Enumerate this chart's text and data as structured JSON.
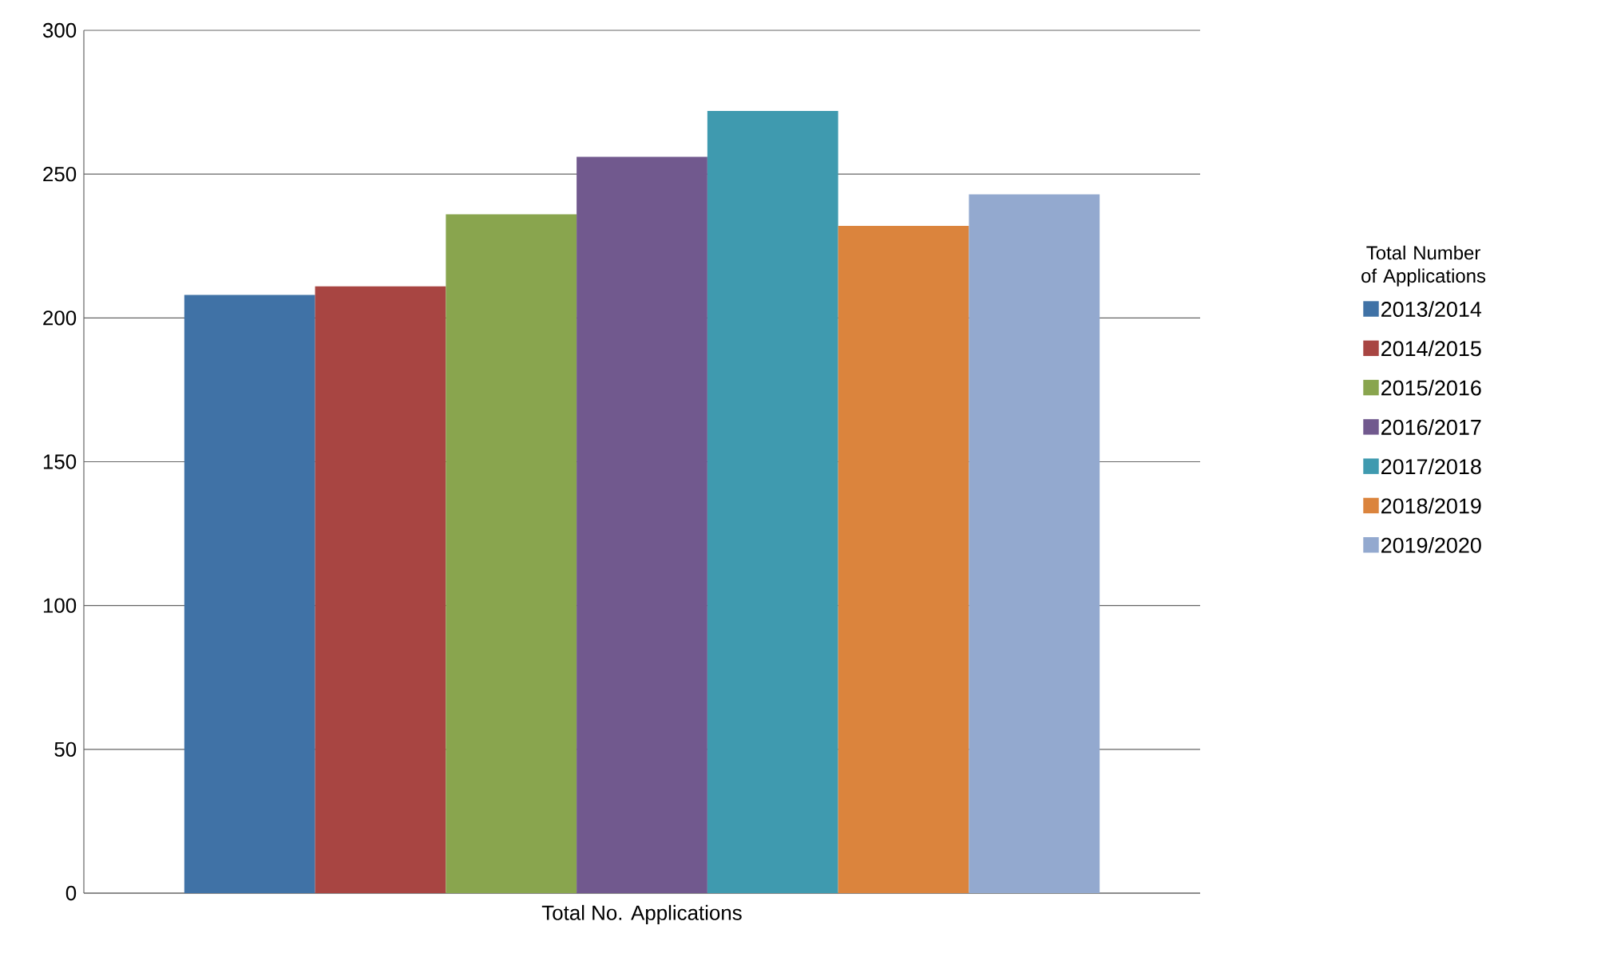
{
  "chart_data": {
    "type": "bar",
    "categories": [
      "Total No. Applications"
    ],
    "legend_title": "Total Number of Applications",
    "series": [
      {
        "name": "2013/2014",
        "color": "#4072a6",
        "values": [
          208
        ]
      },
      {
        "name": "2014/2015",
        "color": "#a84542",
        "values": [
          211
        ]
      },
      {
        "name": "2015/2016",
        "color": "#89a54e",
        "values": [
          236
        ]
      },
      {
        "name": "2016/2017",
        "color": "#71598e",
        "values": [
          256
        ]
      },
      {
        "name": "2017/2018",
        "color": "#3f9aaf",
        "values": [
          272
        ]
      },
      {
        "name": "2018/2019",
        "color": "#db843d",
        "values": [
          232
        ]
      },
      {
        "name": "2019/2020",
        "color": "#93a9cf",
        "values": [
          243
        ]
      }
    ],
    "ylim": [
      0,
      300
    ],
    "yticks": [
      0,
      50,
      100,
      150,
      200,
      250,
      300
    ],
    "grid": "y",
    "legend": "right"
  }
}
